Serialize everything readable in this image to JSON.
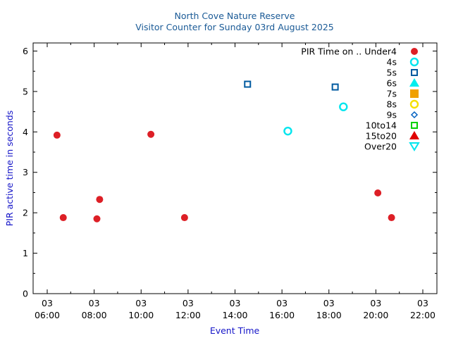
{
  "chart_data": {
    "type": "scatter",
    "title": "North Cove Nature Reserve",
    "subtitle": "Visitor Counter for Sunday 03rd August 2025",
    "xlabel": "Event Time",
    "ylabel": "PIR active time in seconds",
    "xlim": [
      "05:24",
      "22:36"
    ],
    "ylim": [
      0,
      6.2
    ],
    "x_ticks": [
      {
        "day": "03",
        "time": "06:00"
      },
      {
        "day": "03",
        "time": "08:00"
      },
      {
        "day": "03",
        "time": "10:00"
      },
      {
        "day": "03",
        "time": "12:00"
      },
      {
        "day": "03",
        "time": "14:00"
      },
      {
        "day": "03",
        "time": "16:00"
      },
      {
        "day": "03",
        "time": "18:00"
      },
      {
        "day": "03",
        "time": "20:00"
      },
      {
        "day": "03",
        "time": "22:00"
      }
    ],
    "y_ticks": [
      "0",
      "1",
      "2",
      "3",
      "4",
      "5",
      "6"
    ],
    "legend_title": "PIR Time on ..",
    "legend_position": "top-right",
    "series": [
      {
        "name": "Under4",
        "marker": "circle-filled",
        "color": "#dd1f26",
        "points": [
          {
            "x": "06:25",
            "y": 3.92
          },
          {
            "x": "06:41",
            "y": 1.88
          },
          {
            "x": "08:07",
            "y": 1.85
          },
          {
            "x": "08:14",
            "y": 2.33
          },
          {
            "x": "10:25",
            "y": 3.94
          },
          {
            "x": "11:51",
            "y": 1.88
          },
          {
            "x": "20:05",
            "y": 2.49
          },
          {
            "x": "20:40",
            "y": 1.88
          }
        ]
      },
      {
        "name": "4s",
        "marker": "circle-open",
        "color": "#00e5ee",
        "points": [
          {
            "x": "16:15",
            "y": 4.02
          },
          {
            "x": "18:37",
            "y": 4.62
          }
        ]
      },
      {
        "name": "5s",
        "marker": "square-open",
        "color": "#005aa0",
        "points": [
          {
            "x": "14:32",
            "y": 5.18
          },
          {
            "x": "18:16",
            "y": 5.11
          }
        ]
      },
      {
        "name": "6s",
        "marker": "triangle-filled",
        "color": "#00eeee",
        "points": []
      },
      {
        "name": "7s",
        "marker": "square-filled",
        "color": "#f0a000",
        "points": []
      },
      {
        "name": "8s",
        "marker": "circle-open",
        "color": "#f5e000",
        "points": []
      },
      {
        "name": "9s",
        "marker": "diamond-open",
        "color": "#0060c0",
        "points": []
      },
      {
        "name": "10to14",
        "marker": "square-open",
        "color": "#00d000",
        "points": []
      },
      {
        "name": "15to20",
        "marker": "triangle-filled",
        "color": "#e00000",
        "points": []
      },
      {
        "name": "Over20",
        "marker": "triangle-down-open",
        "color": "#00e5ee",
        "points": []
      }
    ]
  }
}
